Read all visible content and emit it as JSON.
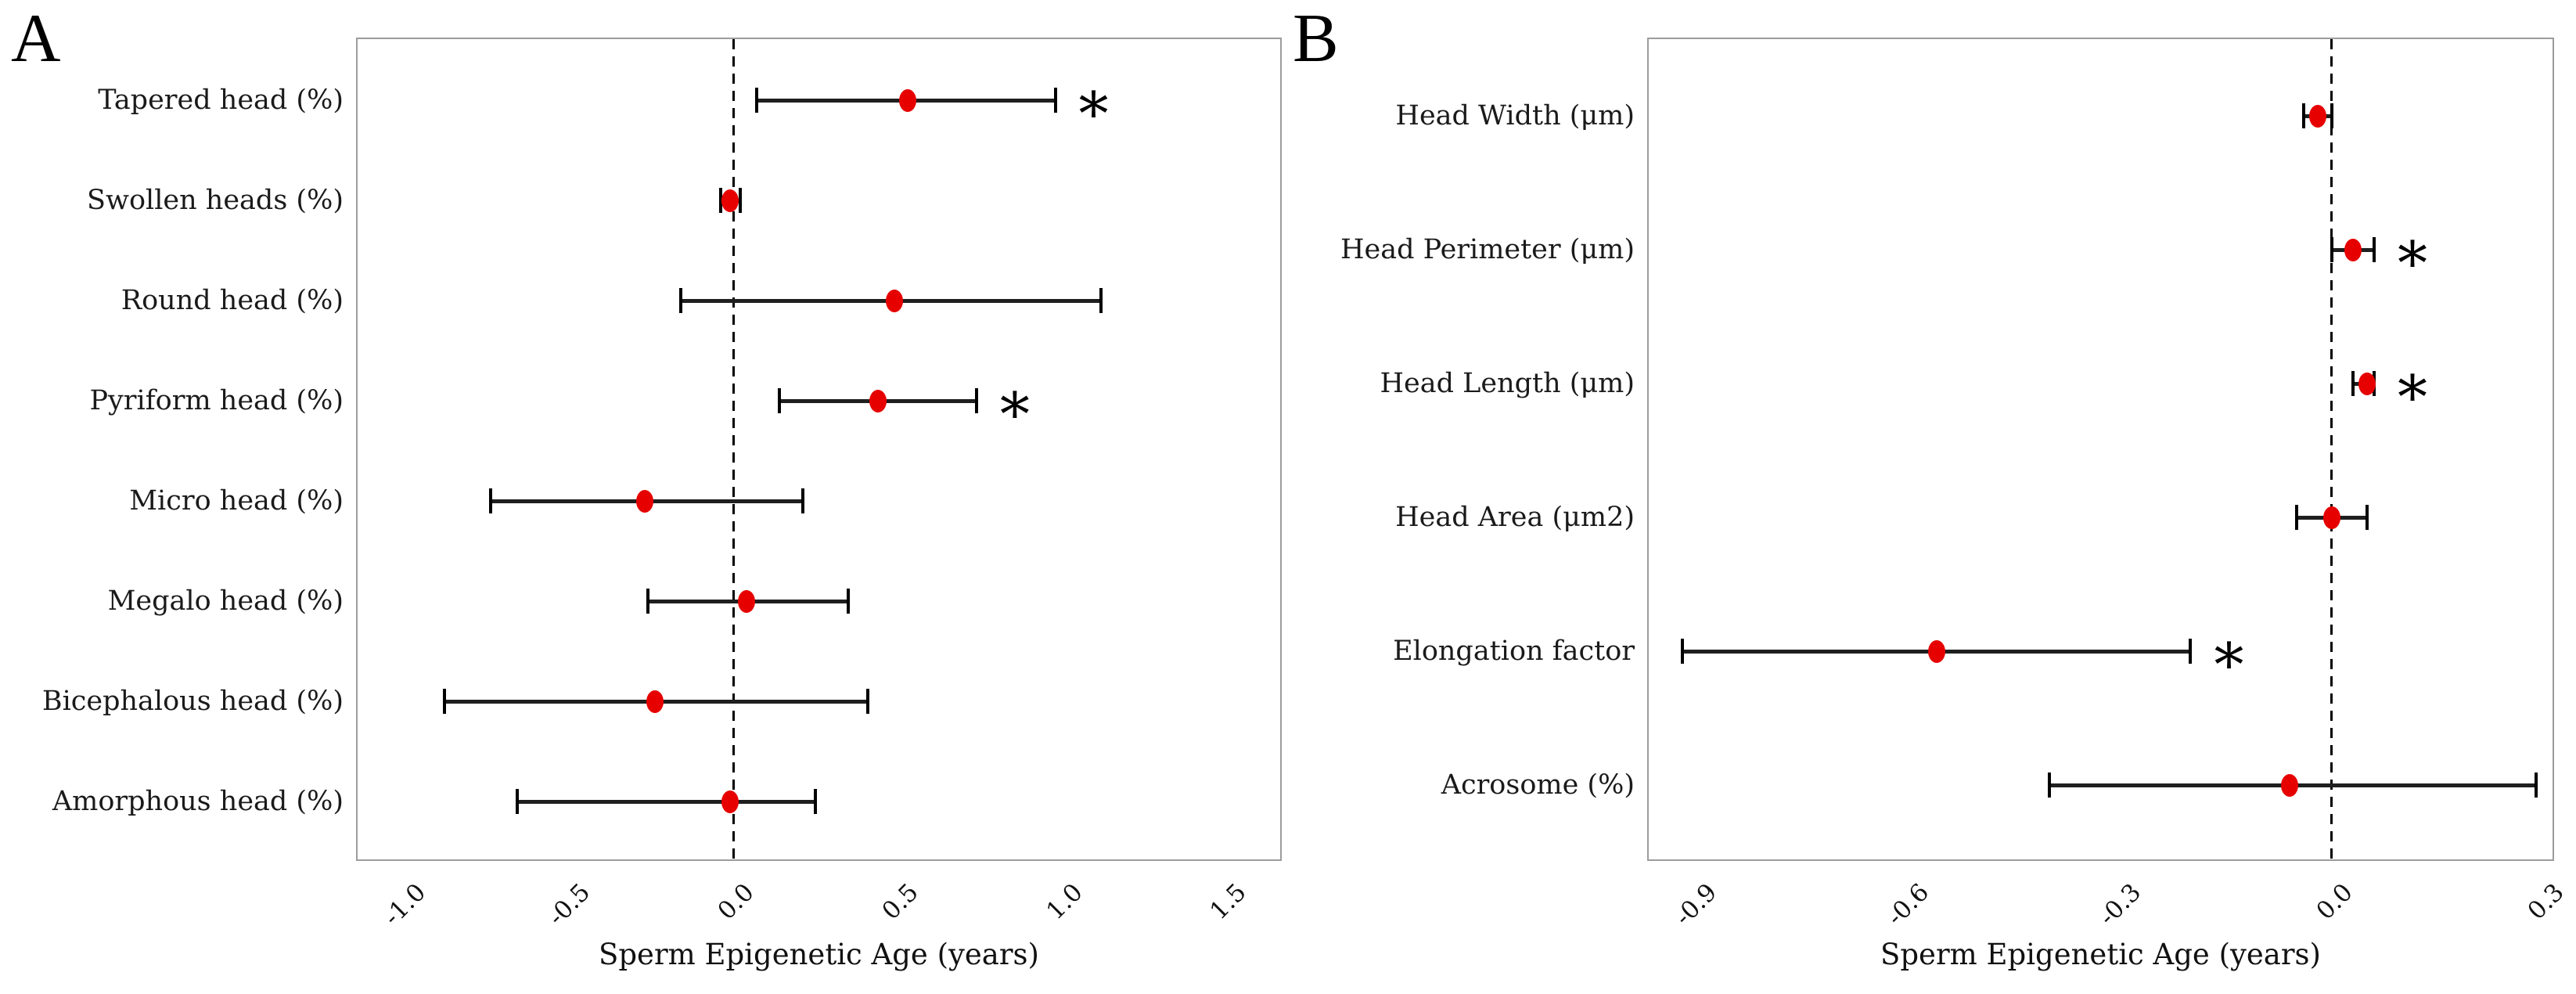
{
  "figure": {
    "significance_marker": "*",
    "colors": {
      "dot": "#e60000",
      "error_bar": "#1f1f1f",
      "frame": "#9c9c9c",
      "dashed_line": "#000000",
      "text": "#141414"
    }
  },
  "chart_data": [
    {
      "type": "scatter",
      "variant": "forest-errorbar",
      "panel_label": "A",
      "xlabel": "Sperm Epigenetic Age (years)",
      "xlim": [
        -1.15,
        1.67
      ],
      "xticks": [
        "-1.0",
        "-0.5",
        "0.0",
        "0.5",
        "1.0",
        "1.5"
      ],
      "zero_line": 0,
      "grid": false,
      "categories": [
        "Tapered head (%)",
        "Swollen heads (%)",
        "Round head (%)",
        "Pyriform head (%)",
        "Micro head (%)",
        "Megalo head (%)",
        "Bicephalous head (%)",
        "Amorphous head (%)"
      ],
      "points": [
        {
          "label": "Tapered head (%)",
          "value": 0.53,
          "ci_low": 0.07,
          "ci_high": 0.98,
          "significant": true
        },
        {
          "label": "Swollen heads (%)",
          "value": -0.01,
          "ci_low": -0.04,
          "ci_high": 0.02,
          "significant": false
        },
        {
          "label": "Round head (%)",
          "value": 0.49,
          "ci_low": -0.16,
          "ci_high": 1.12,
          "significant": false
        },
        {
          "label": "Pyriform head (%)",
          "value": 0.44,
          "ci_low": 0.14,
          "ci_high": 0.74,
          "significant": true
        },
        {
          "label": "Micro head (%)",
          "value": -0.27,
          "ci_low": -0.74,
          "ci_high": 0.21,
          "significant": false
        },
        {
          "label": "Megalo head (%)",
          "value": 0.04,
          "ci_low": -0.26,
          "ci_high": 0.35,
          "significant": false
        },
        {
          "label": "Bicephalous head (%)",
          "value": -0.24,
          "ci_low": -0.88,
          "ci_high": 0.41,
          "significant": false
        },
        {
          "label": "Amorphous head (%)",
          "value": -0.01,
          "ci_low": -0.66,
          "ci_high": 0.25,
          "significant": false
        }
      ]
    },
    {
      "type": "scatter",
      "variant": "forest-errorbar",
      "panel_label": "B",
      "xlabel": "Sperm Epigenetic Age (years)",
      "xlim": [
        -0.97,
        0.315
      ],
      "xticks": [
        "-0.9",
        "-0.6",
        "-0.3",
        "0.0",
        "0.3"
      ],
      "zero_line": 0,
      "grid": false,
      "categories": [
        "Head Width (μm)",
        "Head Perimeter (μm)",
        "Head Length (μm)",
        "Head Area (μm2)",
        "Elongation factor",
        "Acrosome (%)"
      ],
      "points": [
        {
          "label": "Head Width (μm)",
          "value": -0.02,
          "ci_low": -0.04,
          "ci_high": 0.0,
          "significant": false
        },
        {
          "label": "Head Perimeter (μm)",
          "value": 0.03,
          "ci_low": 0.0,
          "ci_high": 0.06,
          "significant": true
        },
        {
          "label": "Head Length (μm)",
          "value": 0.05,
          "ci_low": 0.03,
          "ci_high": 0.06,
          "significant": true
        },
        {
          "label": "Head Area (μm2)",
          "value": 0.0,
          "ci_low": -0.05,
          "ci_high": 0.05,
          "significant": false
        },
        {
          "label": "Elongation factor",
          "value": -0.56,
          "ci_low": -0.92,
          "ci_high": -0.2,
          "significant": true
        },
        {
          "label": "Acrosome (%)",
          "value": -0.06,
          "ci_low": -0.4,
          "ci_high": 0.29,
          "significant": false
        }
      ]
    }
  ]
}
